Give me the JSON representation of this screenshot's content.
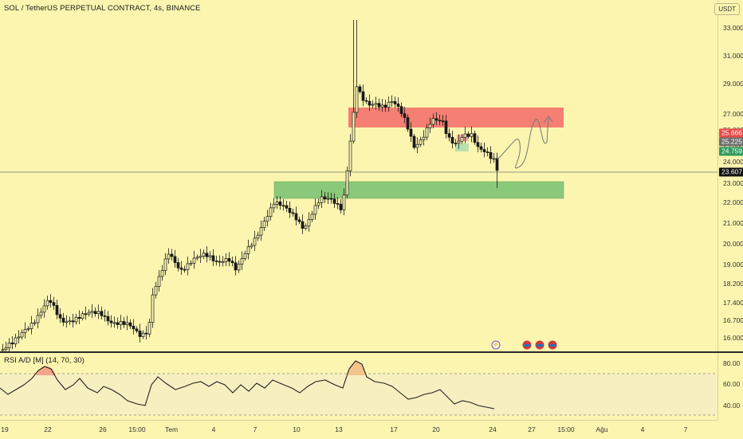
{
  "header": {
    "title": "SOL / TetherUS PERPETUAL CONTRACT, 4s, BINANCE",
    "currency": "USDT"
  },
  "price_scale": {
    "ticks": [
      "33.000",
      "31.000",
      "29.000",
      "27.000",
      "26.000",
      "25.000",
      "24.000",
      "23.000",
      "22.000",
      "21.000",
      "20.000",
      "19.000",
      "18.200",
      "17.400",
      "16.700",
      "16.000"
    ],
    "tags": [
      {
        "value": "25.666",
        "color": "#e84a4a"
      },
      {
        "value": "25.225",
        "color": "#6f6f6f"
      },
      {
        "value": "24.759",
        "color": "#2e9a5e"
      },
      {
        "value": "23.607",
        "color": "#111111"
      }
    ]
  },
  "rsi": {
    "title": "RSI A/D [M] (14, 70, 30)",
    "ticks": [
      "80.00",
      "60.00",
      "40.00"
    ]
  },
  "time_axis": {
    "labels": [
      "19",
      "22",
      "26",
      "15:00",
      "Tem",
      "4",
      "7",
      "10",
      "13",
      "17",
      "20",
      "24",
      "27",
      "15:00",
      "Ağu",
      "4",
      "7"
    ]
  },
  "zones": {
    "supply_color": "#f47f72",
    "demand_color": "#8ac87a"
  },
  "colors": {
    "background": "#fcf5b0",
    "candle": "#1a1a1a",
    "rsi_band": "#f8efc0",
    "rsi_overbought": "#f3c48b"
  },
  "events": [
    {
      "type": "lightning-icon",
      "label": "⚡"
    },
    {
      "type": "flag-icon",
      "label": ""
    },
    {
      "type": "flag-icon",
      "label": ""
    },
    {
      "type": "flag-icon",
      "label": ""
    }
  ]
}
